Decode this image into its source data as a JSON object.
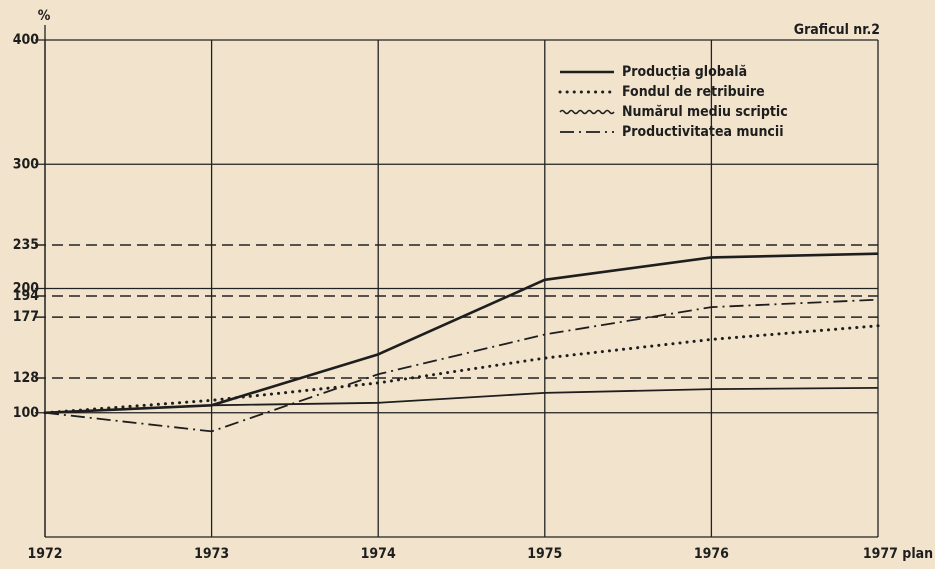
{
  "chart_data": {
    "type": "line",
    "title": "Graficul nr.2",
    "y_label": "%",
    "x": [
      1972,
      1973,
      1974,
      1975,
      1976,
      1977
    ],
    "xlim": [
      1972,
      1977
    ],
    "xticks": [
      1972,
      1973,
      1974,
      1975,
      1976,
      {
        "value": 1977,
        "label": "1977 plan"
      }
    ],
    "ylim": [
      0,
      400
    ],
    "yticks": [
      100,
      200,
      300,
      400
    ],
    "dashed_ticks": [
      128,
      177,
      194,
      235
    ],
    "grid": true,
    "legend": "upper right",
    "series": [
      {
        "name": "Producția globală",
        "color": "#1e1e1e",
        "style": "solid",
        "values": [
          100,
          106,
          147,
          207,
          225,
          228
        ]
      },
      {
        "name": "Fondul de retribuire",
        "color": "#1e1e1e",
        "style": "dotted",
        "values": [
          100,
          110,
          124,
          144,
          159,
          170
        ]
      },
      {
        "name": "Numărul mediu scriptic",
        "color": "#1e1e1e",
        "style": "wavy",
        "values": [
          100,
          106,
          108,
          116,
          119,
          120
        ]
      },
      {
        "name": "Productivitatea muncii",
        "color": "#1e1e1e",
        "style": "dashdot",
        "values": [
          100,
          85,
          131,
          163,
          185,
          191
        ]
      }
    ]
  }
}
